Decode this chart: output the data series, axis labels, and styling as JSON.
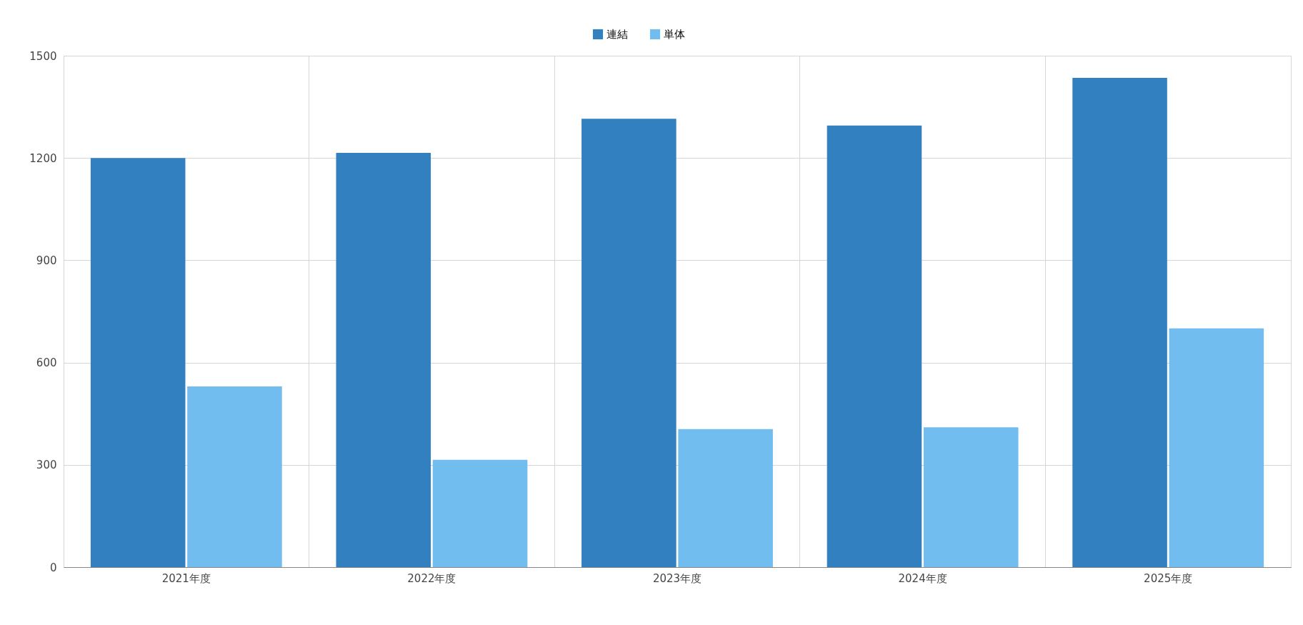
{
  "chart_data": {
    "type": "bar",
    "categories": [
      "2021年度",
      "2022年度",
      "2023年度",
      "2024年度",
      "2025年度"
    ],
    "series": [
      {
        "name": "連結",
        "color": "#3380c0",
        "values": [
          1200,
          1215,
          1315,
          1295,
          1435
        ]
      },
      {
        "name": "単体",
        "color": "#72bdf0",
        "values": [
          530,
          315,
          405,
          410,
          700
        ]
      }
    ],
    "ylim": [
      0,
      1500
    ],
    "yticks": [
      0,
      300,
      600,
      900,
      1200,
      1500
    ],
    "grid": true,
    "legend": "top"
  }
}
